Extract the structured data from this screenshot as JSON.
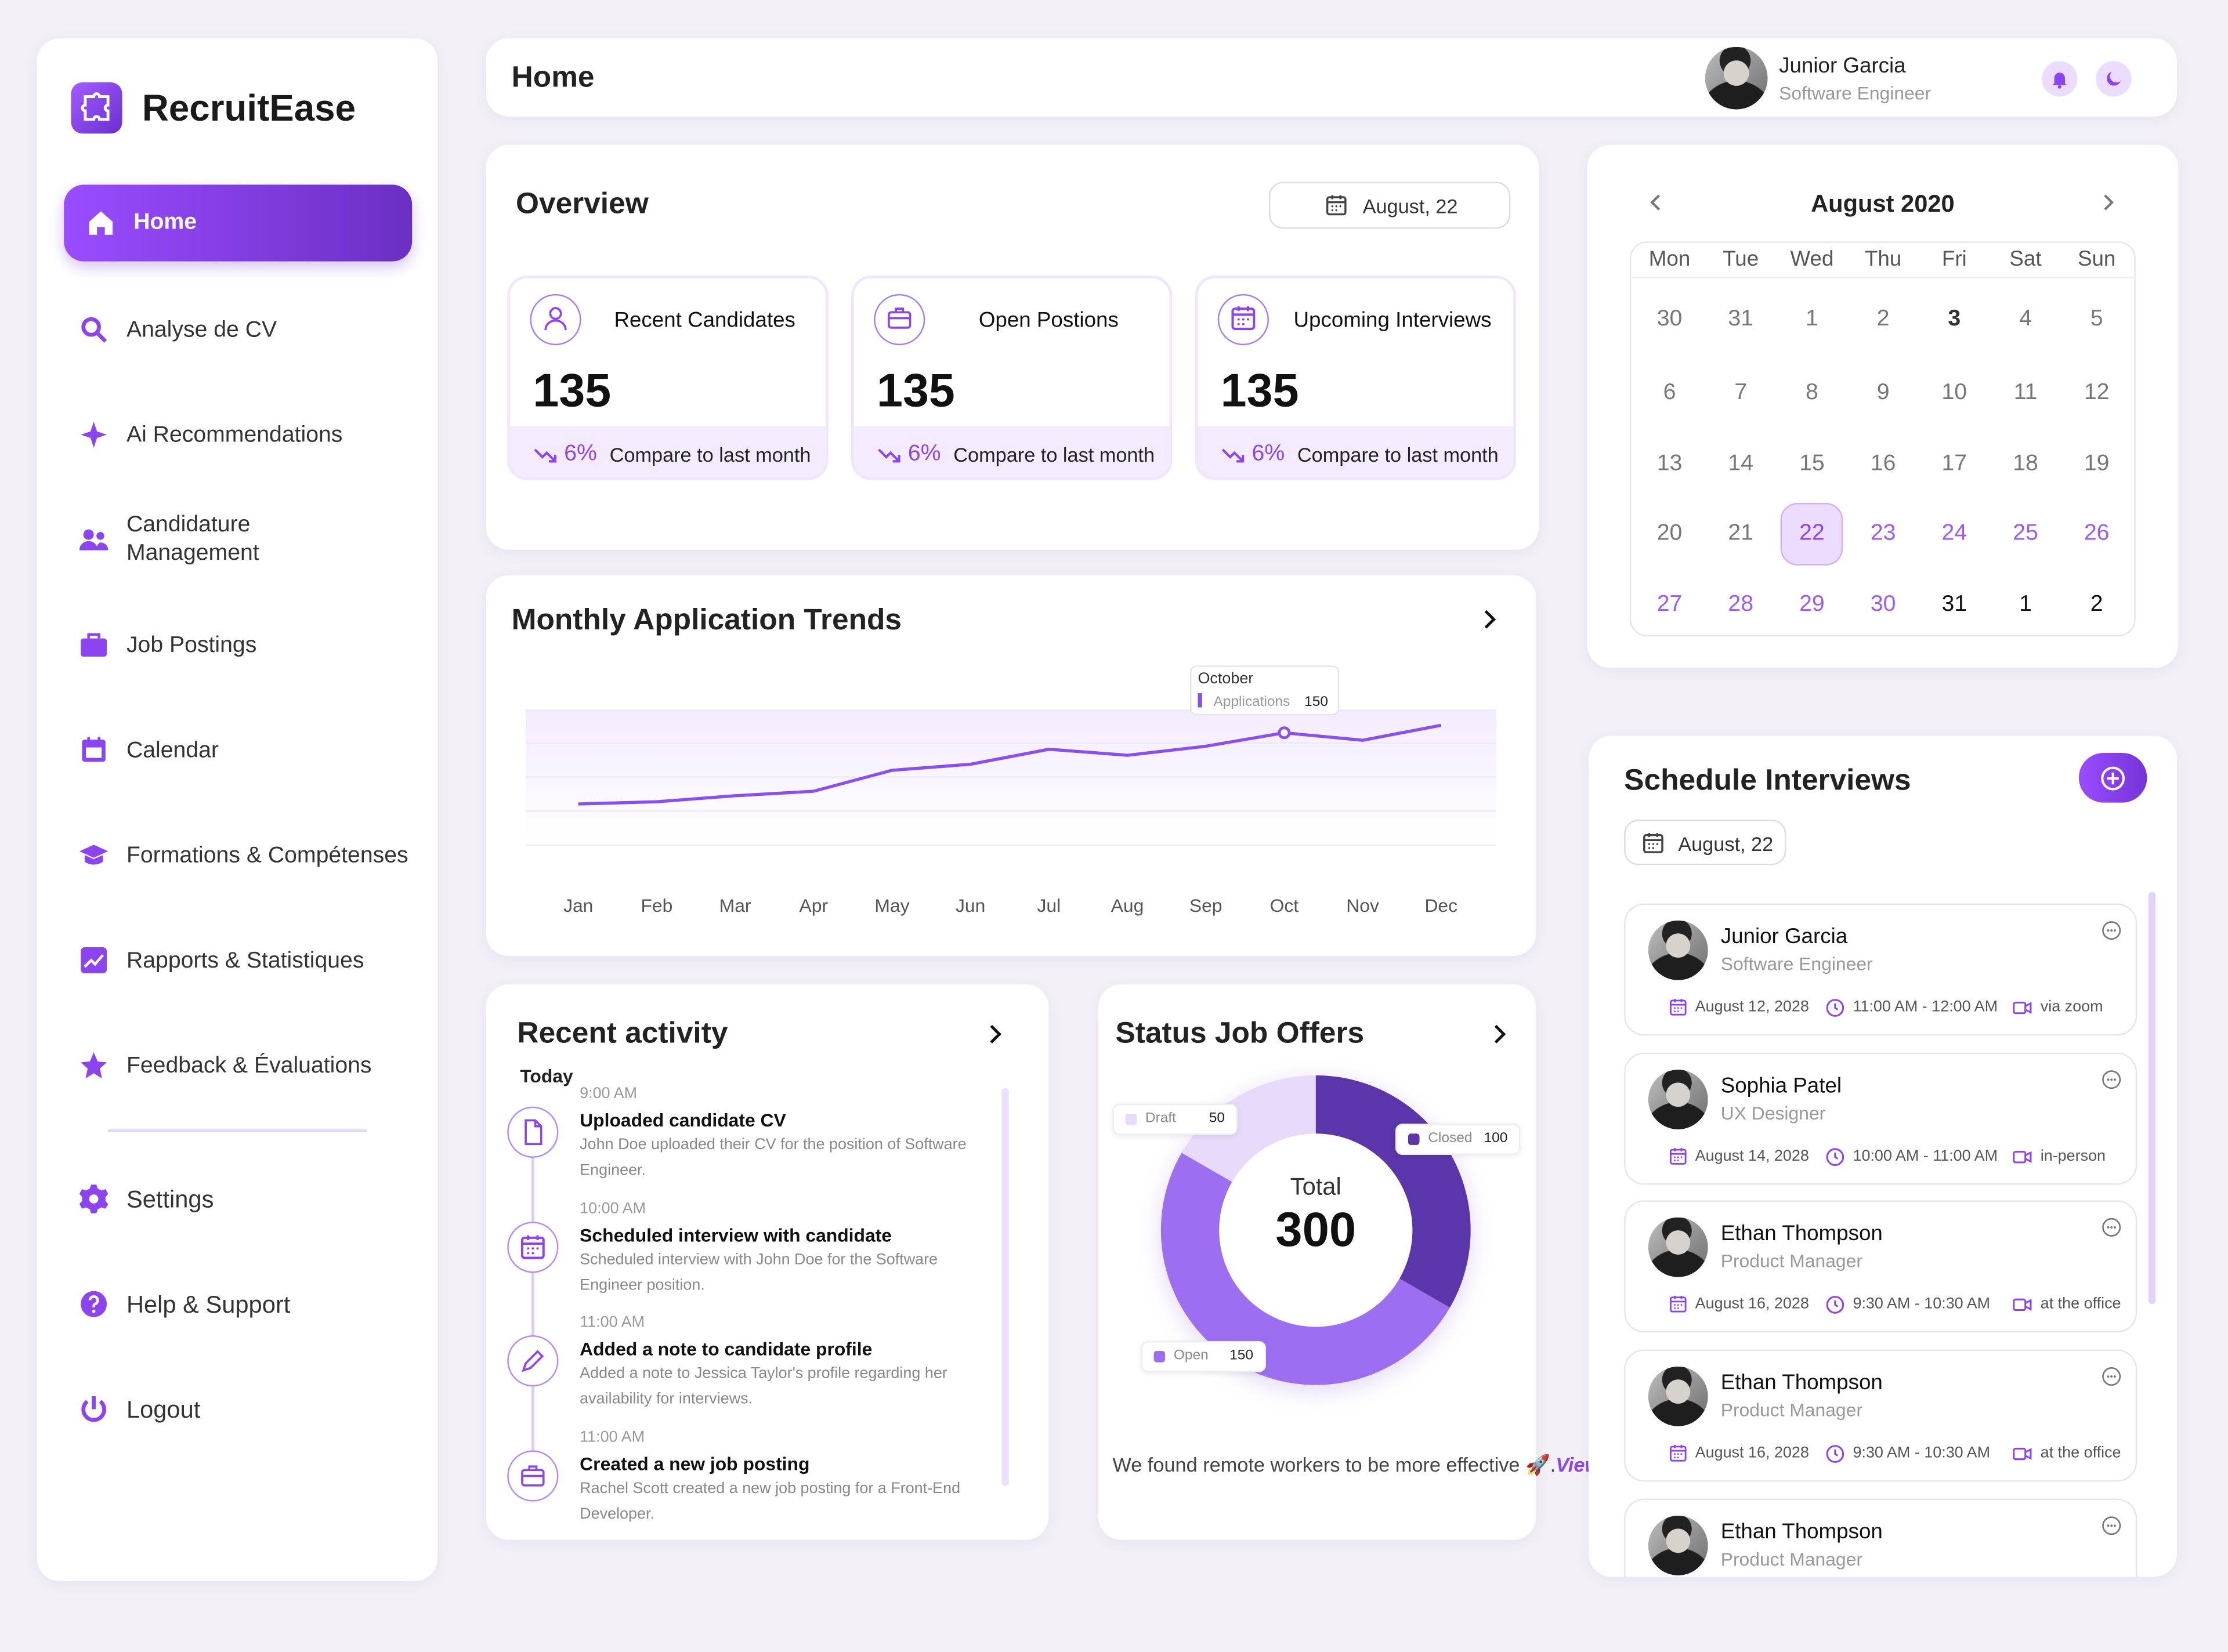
{
  "sidebar": {
    "brand": "RecruitEase",
    "nav": [
      "Home",
      "Analyse de CV",
      "Ai Recommendations",
      "Candidature Management",
      "Job Postings",
      "Calendar",
      "Formations & Compétenses",
      "Rapports & Statistiques",
      "Feedback & Évaluations"
    ],
    "footer_nav": [
      "Settings",
      "Help & Support",
      "Logout"
    ]
  },
  "header": {
    "title": "Home",
    "user": {
      "name": "Junior Garcia",
      "role": "Software Engineer"
    }
  },
  "overview": {
    "title": "Overview",
    "date": "August, 22",
    "cards": [
      {
        "title": "Recent Candidates",
        "value": "135",
        "change": "6%",
        "note": "Compare to last month"
      },
      {
        "title": "Open Postions",
        "value": "135",
        "change": "6%",
        "note": "Compare to last month"
      },
      {
        "title": "Upcoming Interviews",
        "value": "135",
        "change": "6%",
        "note": "Compare to last month"
      }
    ]
  },
  "chart_data": [
    {
      "type": "line",
      "title": "Monthly Application Trends",
      "categories": [
        "Jan",
        "Feb",
        "Mar",
        "Apr",
        "May",
        "Jun",
        "Jul",
        "Aug",
        "Sep",
        "Oct",
        "Nov",
        "Dec"
      ],
      "series": [
        {
          "name": "Applications",
          "color": "#8b4ff0",
          "values": [
            55,
            58,
            66,
            72,
            100,
            108,
            128,
            120,
            132,
            150,
            140,
            160
          ]
        }
      ],
      "ylim": [
        0,
        180
      ],
      "tooltip": {
        "title": "October",
        "index": 9
      }
    },
    {
      "type": "pie",
      "title": "Status Job Offers",
      "categories": [
        "Closed",
        "Open",
        "Draft"
      ],
      "values": [
        100,
        150,
        50
      ],
      "colors": [
        "#5b36ab",
        "#9c6ff0",
        "#e7dafb"
      ],
      "total_label": "Total",
      "total": "300",
      "footer": "We found remote workers to be more effective 🚀.",
      "link": "View Report"
    }
  ],
  "calendar": {
    "month": "August 2020",
    "weekdays": [
      "Mon",
      "Tue",
      "Wed",
      "Thu",
      "Fri",
      "Sat",
      "Sun"
    ],
    "weeks": [
      [
        "30",
        "31",
        "1",
        "2",
        "3",
        "4",
        "5"
      ],
      [
        "6",
        "7",
        "8",
        "9",
        "10",
        "11",
        "12"
      ],
      [
        "13",
        "14",
        "15",
        "16",
        "17",
        "18",
        "19"
      ],
      [
        "20",
        "21",
        "22",
        "23",
        "24",
        "25",
        "26"
      ],
      [
        "27",
        "28",
        "29",
        "30",
        "31",
        "1",
        "2"
      ]
    ]
  },
  "activity": {
    "title": "Recent activity",
    "day": "Today",
    "items": [
      {
        "time": "9:00 AM",
        "title": "Uploaded candidate CV",
        "desc": "John Doe uploaded their CV for the position of Software Engineer."
      },
      {
        "time": "10:00 AM",
        "title": "Scheduled interview with candidate",
        "desc": "Scheduled interview with John Doe for the Software Engineer position."
      },
      {
        "time": "11:00 AM",
        "title": "Added a note to candidate profile",
        "desc": "Added a note to Jessica Taylor's profile regarding her availability for interviews."
      },
      {
        "time": "11:00 AM",
        "title": "Created a new job posting",
        "desc": "Rachel Scott created a new job posting for a Front-End Developer."
      }
    ]
  },
  "schedule": {
    "title": "Schedule Interviews",
    "date": "August, 22",
    "interviews": [
      {
        "name": "Junior Garcia",
        "role": "Software Engineer",
        "date": "August 12, 2028",
        "time": "11:00 AM - 12:00 AM",
        "mode": "via zoom"
      },
      {
        "name": "Sophia Patel",
        "role": "UX Designer",
        "date": "August 14, 2028",
        "time": "10:00 AM - 11:00 AM",
        "mode": "in-person"
      },
      {
        "name": "Ethan Thompson",
        "role": "Product Manager",
        "date": "August 16, 2028",
        "time": "9:30 AM - 10:30 AM",
        "mode": "at the office"
      },
      {
        "name": "Ethan Thompson",
        "role": "Product Manager",
        "date": "August 16, 2028",
        "time": "9:30 AM - 10:30 AM",
        "mode": "at the office"
      },
      {
        "name": "Ethan Thompson",
        "role": "Product Manager"
      }
    ]
  }
}
